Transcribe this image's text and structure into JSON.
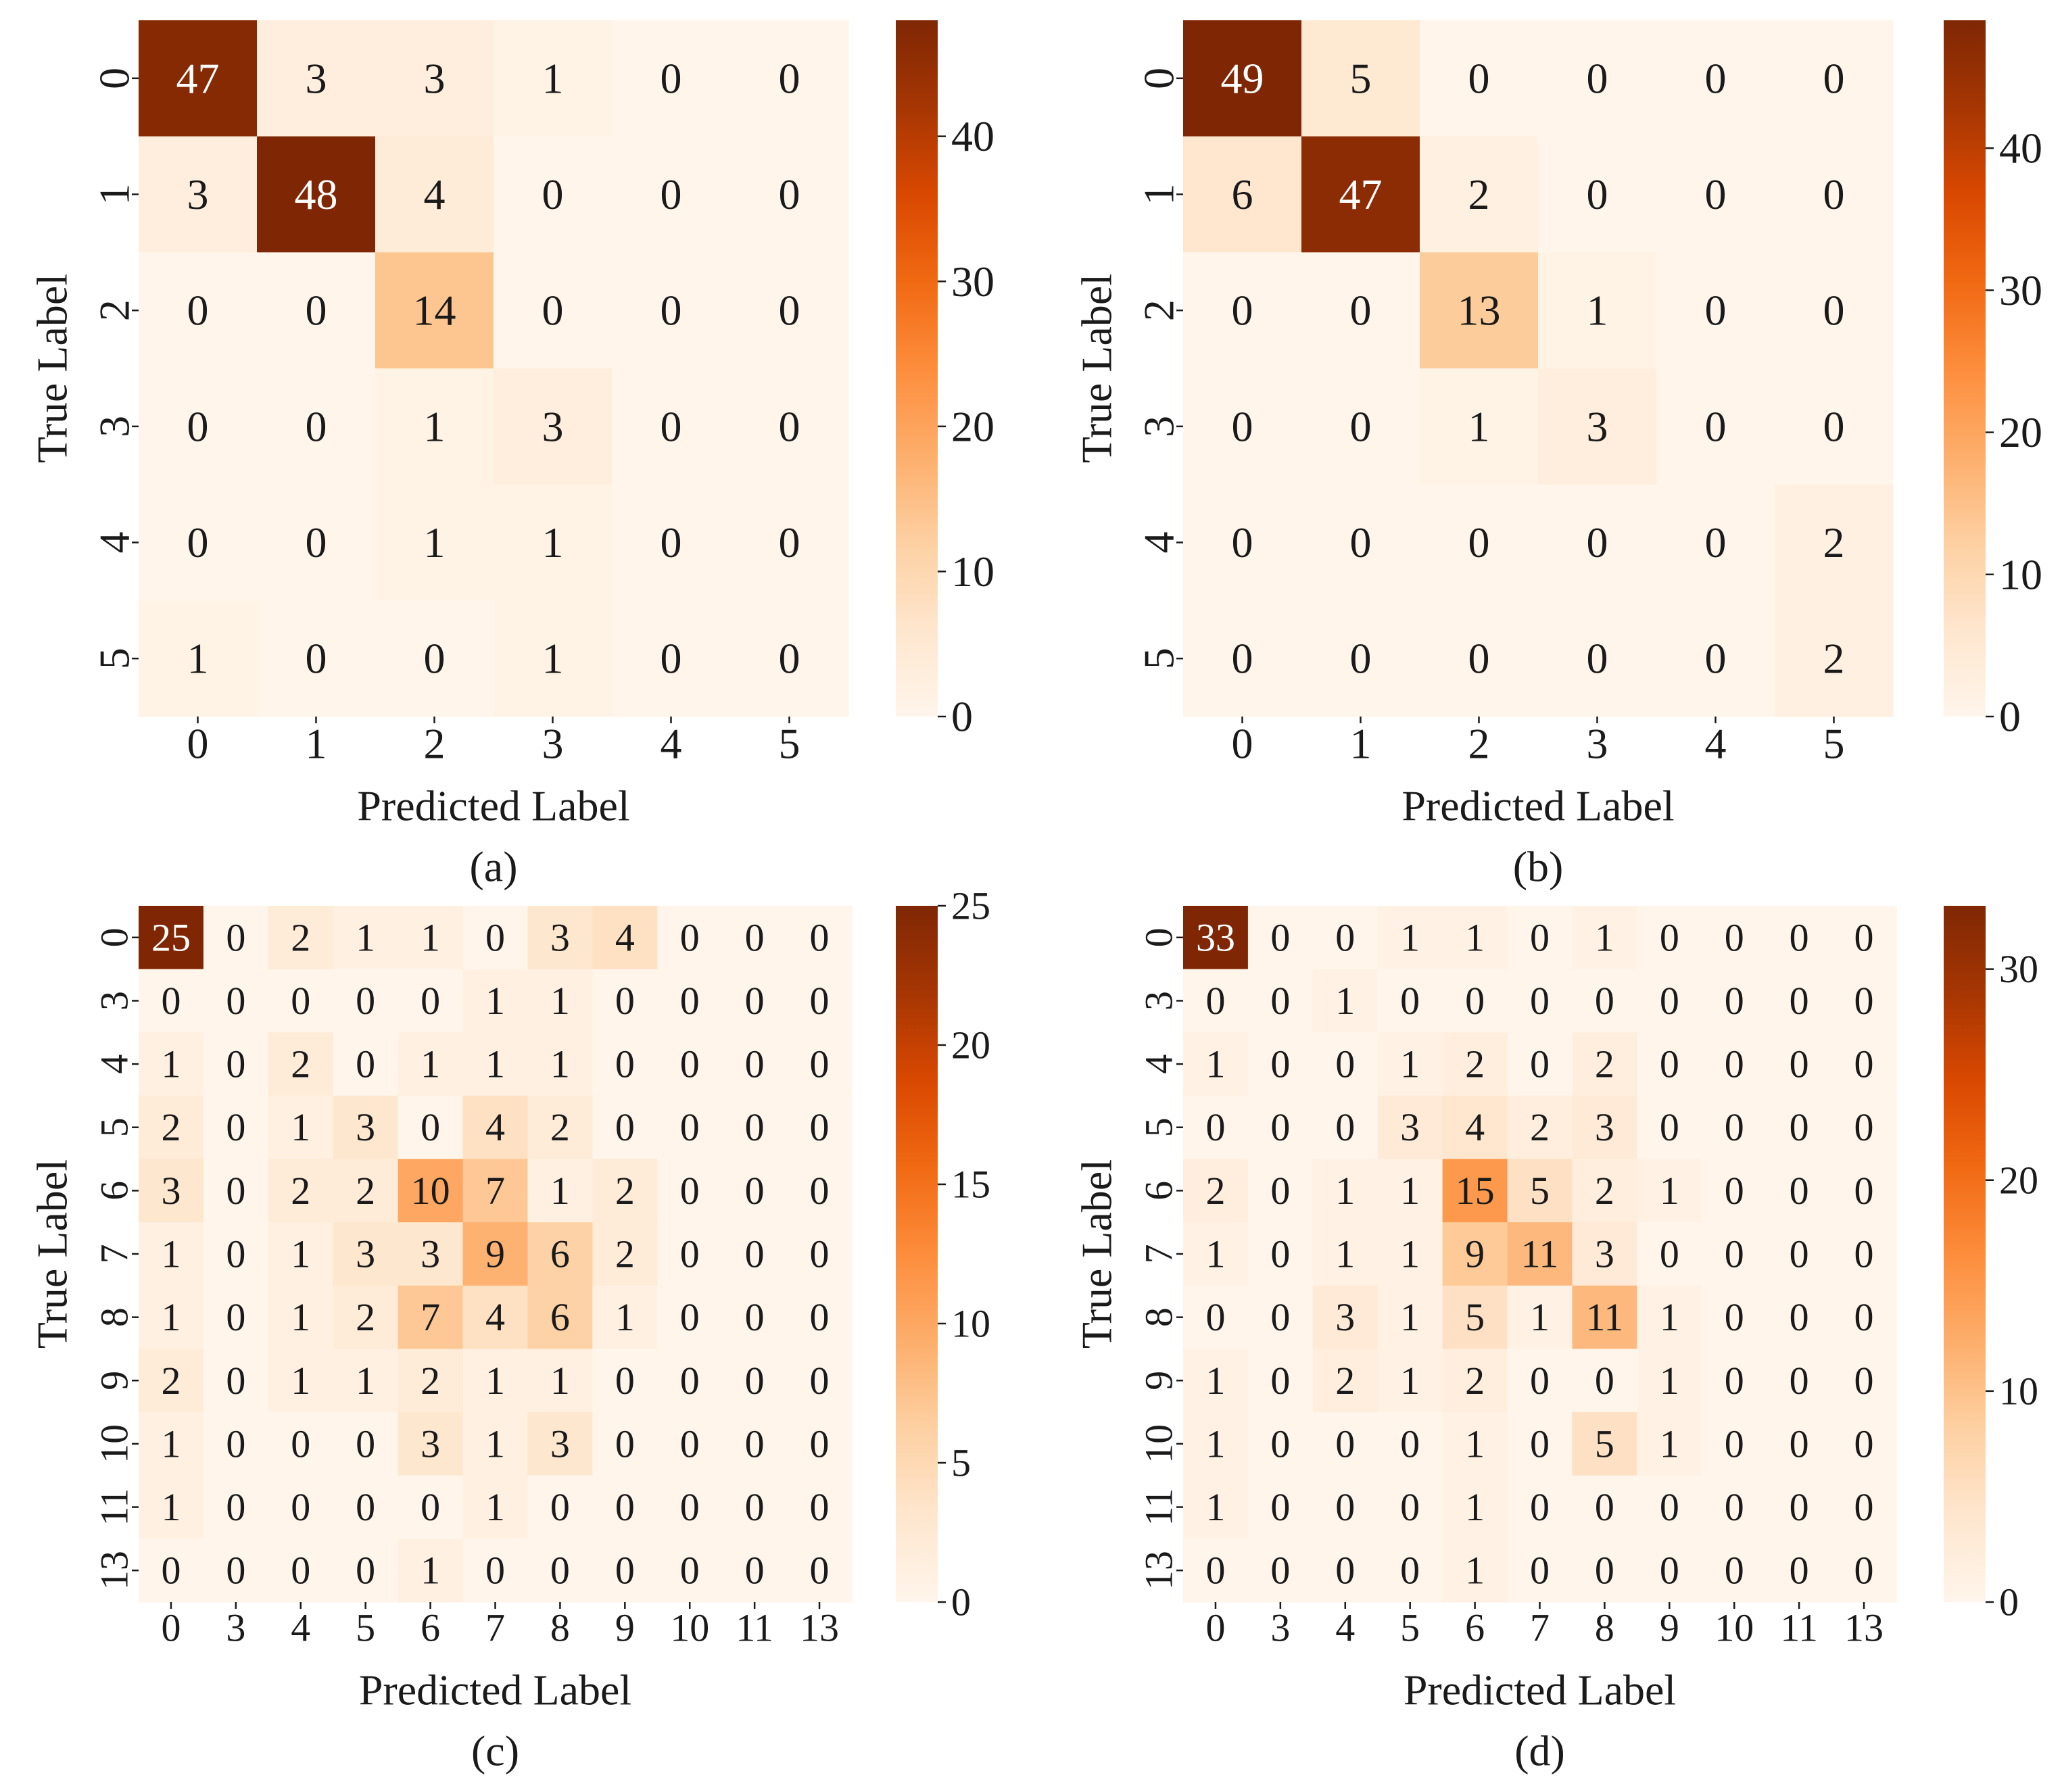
{
  "figure": {
    "colormap": {
      "name": "Oranges",
      "stops": [
        "#fff5eb",
        "#fee6ce",
        "#fdd0a2",
        "#fdae6b",
        "#fd8d3c",
        "#f16913",
        "#d94801",
        "#a63603",
        "#7f2704"
      ]
    }
  },
  "chart_data": [
    {
      "type": "heatmap",
      "caption": "(a)",
      "xlabel": "Predicted Label",
      "ylabel": "True Label",
      "x_categories": [
        "0",
        "1",
        "2",
        "3",
        "4",
        "5"
      ],
      "y_categories": [
        "0",
        "1",
        "2",
        "3",
        "4",
        "5"
      ],
      "values": [
        [
          47,
          3,
          3,
          1,
          0,
          0
        ],
        [
          3,
          48,
          4,
          0,
          0,
          0
        ],
        [
          0,
          0,
          14,
          0,
          0,
          0
        ],
        [
          0,
          0,
          1,
          3,
          0,
          0
        ],
        [
          0,
          0,
          1,
          1,
          0,
          0
        ],
        [
          1,
          0,
          0,
          1,
          0,
          0
        ]
      ],
      "colorbar": {
        "vmin": 0,
        "vmax": 48,
        "ticks": [
          0,
          10,
          20,
          30,
          40
        ]
      }
    },
    {
      "type": "heatmap",
      "caption": "(b)",
      "xlabel": "Predicted Label",
      "ylabel": "True Label",
      "x_categories": [
        "0",
        "1",
        "2",
        "3",
        "4",
        "5"
      ],
      "y_categories": [
        "0",
        "1",
        "2",
        "3",
        "4",
        "5"
      ],
      "values": [
        [
          49,
          5,
          0,
          0,
          0,
          0
        ],
        [
          6,
          47,
          2,
          0,
          0,
          0
        ],
        [
          0,
          0,
          13,
          1,
          0,
          0
        ],
        [
          0,
          0,
          1,
          3,
          0,
          0
        ],
        [
          0,
          0,
          0,
          0,
          0,
          2
        ],
        [
          0,
          0,
          0,
          0,
          0,
          2
        ]
      ],
      "colorbar": {
        "vmin": 0,
        "vmax": 49,
        "ticks": [
          0,
          10,
          20,
          30,
          40
        ]
      }
    },
    {
      "type": "heatmap",
      "caption": "(c)",
      "xlabel": "Predicted Label",
      "ylabel": "True Label",
      "x_categories": [
        "0",
        "3",
        "4",
        "5",
        "6",
        "7",
        "8",
        "9",
        "10",
        "11",
        "13"
      ],
      "y_categories": [
        "0",
        "3",
        "4",
        "5",
        "6",
        "7",
        "8",
        "9",
        "10",
        "11",
        "13"
      ],
      "values": [
        [
          25,
          0,
          2,
          1,
          1,
          0,
          3,
          4,
          0,
          0,
          0
        ],
        [
          0,
          0,
          0,
          0,
          0,
          1,
          1,
          0,
          0,
          0,
          0
        ],
        [
          1,
          0,
          2,
          0,
          1,
          1,
          1,
          0,
          0,
          0,
          0
        ],
        [
          2,
          0,
          1,
          3,
          0,
          4,
          2,
          0,
          0,
          0,
          0
        ],
        [
          3,
          0,
          2,
          2,
          10,
          7,
          1,
          2,
          0,
          0,
          0
        ],
        [
          1,
          0,
          1,
          3,
          3,
          9,
          6,
          2,
          0,
          0,
          0
        ],
        [
          1,
          0,
          1,
          2,
          7,
          4,
          6,
          1,
          0,
          0,
          0
        ],
        [
          2,
          0,
          1,
          1,
          2,
          1,
          1,
          0,
          0,
          0,
          0
        ],
        [
          1,
          0,
          0,
          0,
          3,
          1,
          3,
          0,
          0,
          0,
          0
        ],
        [
          1,
          0,
          0,
          0,
          0,
          1,
          0,
          0,
          0,
          0,
          0
        ],
        [
          0,
          0,
          0,
          0,
          1,
          0,
          0,
          0,
          0,
          0,
          0
        ]
      ],
      "colorbar": {
        "vmin": 0,
        "vmax": 25,
        "ticks": [
          0,
          5,
          10,
          15,
          20,
          25
        ]
      }
    },
    {
      "type": "heatmap",
      "caption": "(d)",
      "xlabel": "Predicted Label",
      "ylabel": "True Label",
      "x_categories": [
        "0",
        "3",
        "4",
        "5",
        "6",
        "7",
        "8",
        "9",
        "10",
        "11",
        "13"
      ],
      "y_categories": [
        "0",
        "3",
        "4",
        "5",
        "6",
        "7",
        "8",
        "9",
        "10",
        "11",
        "13"
      ],
      "values": [
        [
          33,
          0,
          0,
          1,
          1,
          0,
          1,
          0,
          0,
          0,
          0
        ],
        [
          0,
          0,
          1,
          0,
          0,
          0,
          0,
          0,
          0,
          0,
          0
        ],
        [
          1,
          0,
          0,
          1,
          2,
          0,
          2,
          0,
          0,
          0,
          0
        ],
        [
          0,
          0,
          0,
          3,
          4,
          2,
          3,
          0,
          0,
          0,
          0
        ],
        [
          2,
          0,
          1,
          1,
          15,
          5,
          2,
          1,
          0,
          0,
          0
        ],
        [
          1,
          0,
          1,
          1,
          9,
          11,
          3,
          0,
          0,
          0,
          0
        ],
        [
          0,
          0,
          3,
          1,
          5,
          1,
          11,
          1,
          0,
          0,
          0
        ],
        [
          1,
          0,
          2,
          1,
          2,
          0,
          0,
          1,
          0,
          0,
          0
        ],
        [
          1,
          0,
          0,
          0,
          1,
          0,
          5,
          1,
          0,
          0,
          0
        ],
        [
          1,
          0,
          0,
          0,
          1,
          0,
          0,
          0,
          0,
          0,
          0
        ],
        [
          0,
          0,
          0,
          0,
          1,
          0,
          0,
          0,
          0,
          0,
          0
        ]
      ],
      "colorbar": {
        "vmin": 0,
        "vmax": 33,
        "ticks": [
          0,
          10,
          20,
          30
        ]
      }
    }
  ]
}
